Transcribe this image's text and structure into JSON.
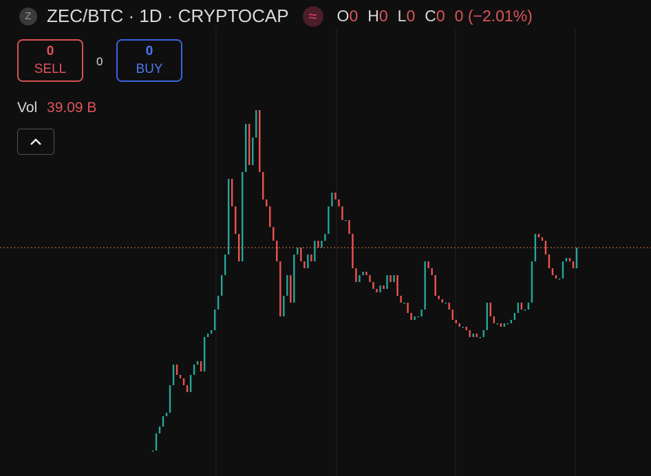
{
  "header": {
    "icon": "Z",
    "title": "ZEC/BTC · 1D · CRYPTOCAP",
    "ohlc": [
      {
        "key": "O",
        "value": "0"
      },
      {
        "key": "H",
        "value": "0"
      },
      {
        "key": "L",
        "value": "0"
      },
      {
        "key": "C",
        "value": "0"
      }
    ],
    "change": "0 (−2.01%)"
  },
  "trade": {
    "sell_value": "0",
    "sell_label": "SELL",
    "spread": "0",
    "buy_value": "0",
    "buy_label": "BUY"
  },
  "volume": {
    "label": "Vol",
    "value": "39.09 B"
  },
  "chart_data": {
    "type": "candlestick",
    "color_up": "#26a69a",
    "color_down": "#ef5350",
    "price_line_color": "#e8743b",
    "close": [
      37,
      62,
      72,
      87,
      92,
      132,
      162,
      147,
      142,
      132,
      122,
      147,
      162,
      167,
      152,
      202,
      207,
      212,
      242,
      262,
      292,
      322,
      432,
      392,
      352,
      312,
      442,
      512,
      452,
      492,
      532,
      442,
      402,
      392,
      362,
      342,
      312,
      232,
      262,
      292,
      252,
      322,
      332,
      312,
      302,
      322,
      312,
      342,
      332,
      342,
      352,
      392,
      412,
      402,
      392,
      372,
      372,
      352,
      302,
      282,
      292,
      297,
      292,
      282,
      272,
      267,
      277,
      272,
      292,
      282,
      292,
      262,
      252,
      252,
      237,
      227,
      232,
      232,
      242,
      312,
      302,
      292,
      262,
      257,
      252,
      252,
      242,
      227,
      222,
      217,
      217,
      212,
      202,
      207,
      202,
      202,
      212,
      252,
      232,
      222,
      222,
      217,
      222,
      222,
      227,
      237,
      252,
      242,
      242,
      252,
      312,
      352,
      347,
      342,
      322,
      302,
      292,
      287,
      287,
      312,
      317,
      312,
      302,
      332
    ]
  }
}
